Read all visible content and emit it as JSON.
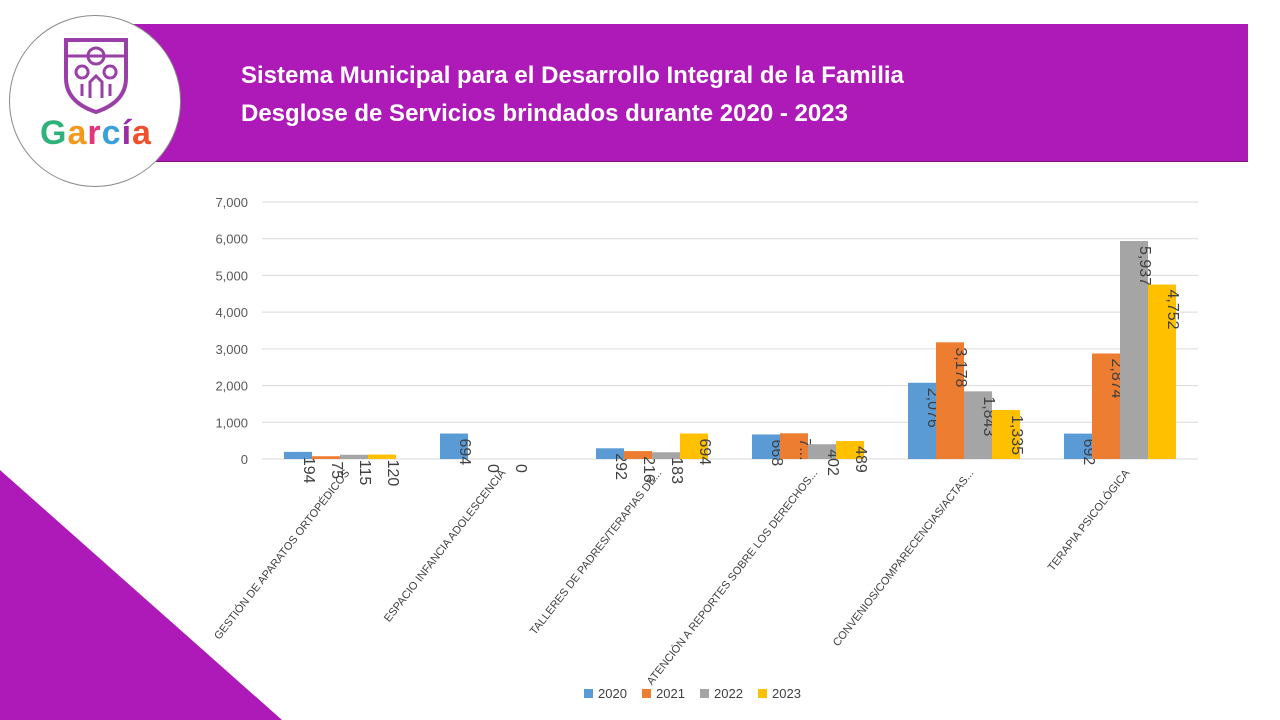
{
  "header": {
    "title_line1": "Sistema Municipal para el Desarrollo Integral de la Familia",
    "title_line2": "Desglose de Servicios brindados durante 2020 - 2023"
  },
  "logo": {
    "wordmark_letters": [
      "G",
      "a",
      "r",
      "c",
      "í",
      "a"
    ],
    "wordmark_colors": [
      "#2db27b",
      "#f39a1e",
      "#e4347a",
      "#3b9fd8",
      "#9b2aa9",
      "#f04f2e"
    ],
    "shield_color": "#9a3fa7"
  },
  "colors": {
    "brand_purple": "#ad1ab7",
    "series_2020": "#5b9bd5",
    "series_2021": "#ed7d31",
    "series_2022": "#a5a5a5",
    "series_2023": "#ffc000"
  },
  "chart_data": {
    "type": "bar",
    "title": "Desglose de Servicios brindados durante 2020 - 2023",
    "categories": [
      "GESTIÓN DE APARATOS ORTOPÉDICOS",
      "ESPACIO INFANCIA ADOLESCENCIA",
      "TALLERES DE PADRES/TERAPIAS DE...",
      "ATENCIÓN A REPORTES SOBRE LOS DERECHOS...",
      "CONVENIOS/COMPARECENCIAS/ACTAS...",
      "TERAPIA PSICOLÓGICA"
    ],
    "series": [
      {
        "name": "2020",
        "values": [
          194,
          694,
          292,
          668,
          2076,
          692
        ],
        "labels": [
          "194",
          "694",
          "292",
          "668",
          "2,076",
          "692"
        ]
      },
      {
        "name": "2021",
        "values": [
          75,
          0,
          216,
          700,
          3178,
          2874
        ],
        "labels": [
          "75",
          "0",
          "216",
          "7...",
          "3,178",
          "2,874"
        ]
      },
      {
        "name": "2022",
        "values": [
          115,
          0,
          183,
          402,
          1843,
          5937
        ],
        "labels": [
          "115",
          "0",
          "183",
          "402",
          "1,843",
          "5,937"
        ]
      },
      {
        "name": "2023",
        "values": [
          120,
          0,
          694,
          489,
          1335,
          4752
        ],
        "labels": [
          "120",
          "",
          "694",
          "489",
          "1,335",
          "4,752"
        ]
      }
    ],
    "ylim": [
      0,
      7000
    ],
    "yticks": [
      0,
      1000,
      2000,
      3000,
      4000,
      5000,
      6000,
      7000
    ],
    "ytick_labels": [
      "0",
      "1,000",
      "2,000",
      "3,000",
      "4,000",
      "5,000",
      "6,000",
      "7,000"
    ],
    "xlabel": "",
    "ylabel": "",
    "grid": true,
    "legend": "bottom-center"
  }
}
